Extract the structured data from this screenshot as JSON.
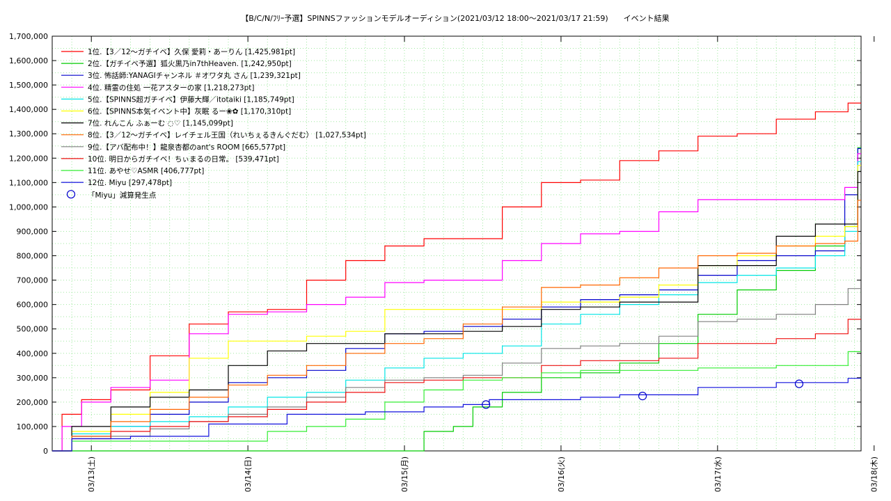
{
  "chart_data": {
    "type": "line",
    "title": "【B/C/N/ﾌﾘｰ予選】SPINNSファッションモデルオーディション(2021/03/12 18:00～2021/03/17 21:59)　　イベント結果",
    "xlabel": "",
    "ylabel": "",
    "x_range": [
      "2021/03/12 18:00",
      "2021/03/17 22:00"
    ],
    "ylim": [
      0,
      1700000
    ],
    "y_ticks": [
      0,
      100000,
      200000,
      300000,
      400000,
      500000,
      600000,
      700000,
      800000,
      900000,
      1000000,
      1100000,
      1200000,
      1300000,
      1400000,
      1500000,
      1600000,
      1700000
    ],
    "y_tick_labels": [
      "0",
      "100,000",
      "200,000",
      "300,000",
      "400,000",
      "500,000",
      "600,000",
      "700,000",
      "800,000",
      "900,000",
      "1,000,000",
      "1,100,000",
      "1,200,000",
      "1,300,000",
      "1,400,000",
      "1,500,000",
      "1,600,000",
      "1,700,000"
    ],
    "x_ticks": [
      {
        "t": "2021/03/13 00:00",
        "label": "03/13(土)"
      },
      {
        "t": "2021/03/14 00:00",
        "label": "03/14(日)"
      },
      {
        "t": "2021/03/15 00:00",
        "label": "03/15(月)"
      },
      {
        "t": "2021/03/16 00:00",
        "label": "03/16(火)"
      },
      {
        "t": "2021/03/17 00:00",
        "label": "03/17(水)"
      },
      {
        "t": "2021/03/18 00:00",
        "label": "03/18(木)"
      }
    ],
    "grid": true,
    "legend_position": "top-left",
    "series": [
      {
        "name": "1位.【3／12～ガチイベ】久保 愛莉・あーりん [1,425,981pt]",
        "color": "#ff0000",
        "x": [
          "2021/03/12 18:00",
          "2021/03/12 21:00",
          "2021/03/13 00:00",
          "2021/03/13 06:00",
          "2021/03/13 12:00",
          "2021/03/13 18:00",
          "2021/03/14 00:00",
          "2021/03/14 06:00",
          "2021/03/14 12:00",
          "2021/03/14 18:00",
          "2021/03/15 00:00",
          "2021/03/15 06:00",
          "2021/03/15 12:00",
          "2021/03/15 18:00",
          "2021/03/16 00:00",
          "2021/03/16 06:00",
          "2021/03/16 12:00",
          "2021/03/16 18:00",
          "2021/03/17 00:00",
          "2021/03/17 06:00",
          "2021/03/17 12:00",
          "2021/03/17 18:00",
          "2021/03/17 22:00"
        ],
        "y": [
          0,
          150000,
          210000,
          250000,
          390000,
          520000,
          570000,
          580000,
          700000,
          780000,
          840000,
          870000,
          870000,
          1000000,
          1100000,
          1110000,
          1190000,
          1230000,
          1290000,
          1300000,
          1360000,
          1390000,
          1425981
        ]
      },
      {
        "name": "2位.【ガチイベ予選】狐火黒乃in7thHeaven. [1,242,950pt]",
        "color": "#00cc00",
        "x": [
          "2021/03/12 18:00",
          "2021/03/15 00:00",
          "2021/03/15 06:00",
          "2021/03/15 09:00",
          "2021/03/15 12:00",
          "2021/03/15 18:00",
          "2021/03/16 00:00",
          "2021/03/16 06:00",
          "2021/03/16 12:00",
          "2021/03/16 18:00",
          "2021/03/17 00:00",
          "2021/03/17 06:00",
          "2021/03/17 12:00",
          "2021/03/17 18:00",
          "2021/03/17 21:00",
          "2021/03/17 22:00"
        ],
        "y": [
          0,
          0,
          80000,
          100000,
          180000,
          240000,
          300000,
          320000,
          360000,
          440000,
          560000,
          660000,
          740000,
          840000,
          920000,
          1242950
        ]
      },
      {
        "name": "3位. 怖話師:YANAGIチャンネル ＃オワタ丸 さん [1,239,321pt]",
        "color": "#0000cc",
        "x": [
          "2021/03/12 18:00",
          "2021/03/13 00:00",
          "2021/03/13 06:00",
          "2021/03/13 12:00",
          "2021/03/13 18:00",
          "2021/03/14 00:00",
          "2021/03/14 06:00",
          "2021/03/14 12:00",
          "2021/03/14 18:00",
          "2021/03/15 00:00",
          "2021/03/15 06:00",
          "2021/03/15 12:00",
          "2021/03/15 18:00",
          "2021/03/16 00:00",
          "2021/03/16 06:00",
          "2021/03/16 12:00",
          "2021/03/16 18:00",
          "2021/03/17 00:00",
          "2021/03/17 06:00",
          "2021/03/17 12:00",
          "2021/03/17 18:00",
          "2021/03/17 21:00",
          "2021/03/17 22:00"
        ],
        "y": [
          0,
          60000,
          100000,
          150000,
          200000,
          280000,
          300000,
          330000,
          420000,
          480000,
          490000,
          510000,
          540000,
          590000,
          620000,
          640000,
          660000,
          720000,
          780000,
          800000,
          820000,
          1050000,
          1239321
        ]
      },
      {
        "name": "4位. 精霊の住処 一花アスターの家 [1,218,273pt]",
        "color": "#ff00ff",
        "x": [
          "2021/03/12 18:00",
          "2021/03/12 21:00",
          "2021/03/13 00:00",
          "2021/03/13 06:00",
          "2021/03/13 12:00",
          "2021/03/13 18:00",
          "2021/03/14 00:00",
          "2021/03/14 06:00",
          "2021/03/14 12:00",
          "2021/03/14 18:00",
          "2021/03/15 00:00",
          "2021/03/15 06:00",
          "2021/03/15 12:00",
          "2021/03/15 18:00",
          "2021/03/16 00:00",
          "2021/03/16 06:00",
          "2021/03/16 12:00",
          "2021/03/16 18:00",
          "2021/03/17 00:00",
          "2021/03/17 06:00",
          "2021/03/17 12:00",
          "2021/03/17 18:00",
          "2021/03/17 21:00",
          "2021/03/17 22:00"
        ],
        "y": [
          0,
          100000,
          200000,
          260000,
          290000,
          480000,
          560000,
          570000,
          600000,
          630000,
          690000,
          700000,
          700000,
          780000,
          850000,
          890000,
          900000,
          980000,
          1030000,
          1030000,
          1030000,
          1030000,
          1080000,
          1218273
        ]
      },
      {
        "name": "5位.【SPINNS超ガチイベ】伊藤大輝／itotaiki [1,185,749pt]",
        "color": "#00e5e5",
        "x": [
          "2021/03/12 18:00",
          "2021/03/13 00:00",
          "2021/03/13 06:00",
          "2021/03/13 12:00",
          "2021/03/13 18:00",
          "2021/03/14 00:00",
          "2021/03/14 06:00",
          "2021/03/14 12:00",
          "2021/03/14 18:00",
          "2021/03/15 00:00",
          "2021/03/15 06:00",
          "2021/03/15 12:00",
          "2021/03/15 18:00",
          "2021/03/16 00:00",
          "2021/03/16 06:00",
          "2021/03/16 12:00",
          "2021/03/16 18:00",
          "2021/03/17 00:00",
          "2021/03/17 06:00",
          "2021/03/17 12:00",
          "2021/03/17 18:00",
          "2021/03/17 21:00",
          "2021/03/17 22:00"
        ],
        "y": [
          0,
          70000,
          100000,
          120000,
          140000,
          180000,
          220000,
          240000,
          290000,
          340000,
          380000,
          400000,
          430000,
          520000,
          560000,
          600000,
          640000,
          690000,
          720000,
          750000,
          800000,
          900000,
          1185749
        ]
      },
      {
        "name": "6位.【SPINNS本気イベント中】灰眠 るー❀✿ [1,170,310pt]",
        "color": "#ffff00",
        "x": [
          "2021/03/12 18:00",
          "2021/03/13 00:00",
          "2021/03/13 06:00",
          "2021/03/13 12:00",
          "2021/03/13 18:00",
          "2021/03/14 00:00",
          "2021/03/14 06:00",
          "2021/03/14 12:00",
          "2021/03/14 18:00",
          "2021/03/15 00:00",
          "2021/03/15 06:00",
          "2021/03/15 12:00",
          "2021/03/15 18:00",
          "2021/03/16 00:00",
          "2021/03/16 06:00",
          "2021/03/16 12:00",
          "2021/03/16 18:00",
          "2021/03/17 00:00",
          "2021/03/17 06:00",
          "2021/03/17 12:00",
          "2021/03/17 18:00",
          "2021/03/17 21:00",
          "2021/03/17 22:00"
        ],
        "y": [
          0,
          80000,
          150000,
          240000,
          380000,
          450000,
          450000,
          470000,
          490000,
          580000,
          580000,
          580000,
          580000,
          610000,
          610000,
          630000,
          680000,
          760000,
          800000,
          840000,
          880000,
          920000,
          1170310
        ]
      },
      {
        "name": "7位. れんこん ふぁーむ ◌♡ [1,145,099pt]",
        "color": "#000000",
        "x": [
          "2021/03/12 18:00",
          "2021/03/13 00:00",
          "2021/03/13 06:00",
          "2021/03/13 12:00",
          "2021/03/13 18:00",
          "2021/03/14 00:00",
          "2021/03/14 06:00",
          "2021/03/14 12:00",
          "2021/03/14 18:00",
          "2021/03/15 00:00",
          "2021/03/15 06:00",
          "2021/03/15 12:00",
          "2021/03/15 18:00",
          "2021/03/16 00:00",
          "2021/03/16 06:00",
          "2021/03/16 12:00",
          "2021/03/16 18:00",
          "2021/03/17 00:00",
          "2021/03/17 06:00",
          "2021/03/17 12:00",
          "2021/03/17 18:00",
          "2021/03/17 21:00",
          "2021/03/17 22:00"
        ],
        "y": [
          0,
          100000,
          180000,
          220000,
          250000,
          350000,
          410000,
          440000,
          440000,
          480000,
          480000,
          490000,
          510000,
          580000,
          590000,
          610000,
          610000,
          760000,
          760000,
          880000,
          930000,
          930000,
          1145099
        ]
      },
      {
        "name": "8位.【3／12～ガチイベ】レイチェル王国（れいちぇるきんぐだむ） [1,027,534pt]",
        "color": "#ff6600",
        "x": [
          "2021/03/12 18:00",
          "2021/03/13 00:00",
          "2021/03/13 06:00",
          "2021/03/13 12:00",
          "2021/03/13 18:00",
          "2021/03/14 00:00",
          "2021/03/14 06:00",
          "2021/03/14 12:00",
          "2021/03/14 18:00",
          "2021/03/15 00:00",
          "2021/03/15 06:00",
          "2021/03/15 12:00",
          "2021/03/15 18:00",
          "2021/03/16 00:00",
          "2021/03/16 06:00",
          "2021/03/16 12:00",
          "2021/03/16 18:00",
          "2021/03/17 00:00",
          "2021/03/17 06:00",
          "2021/03/17 12:00",
          "2021/03/17 18:00",
          "2021/03/17 21:00",
          "2021/03/17 22:00"
        ],
        "y": [
          0,
          60000,
          120000,
          170000,
          220000,
          270000,
          310000,
          350000,
          400000,
          440000,
          460000,
          520000,
          590000,
          670000,
          680000,
          710000,
          750000,
          800000,
          810000,
          840000,
          850000,
          860000,
          1027534
        ]
      },
      {
        "name": "9位.【アバ配布中！】龍泉杏都のant's ROOM [665,577pt]",
        "color": "#808080",
        "x": [
          "2021/03/12 18:00",
          "2021/03/13 00:00",
          "2021/03/13 06:00",
          "2021/03/13 12:00",
          "2021/03/13 18:00",
          "2021/03/14 00:00",
          "2021/03/14 06:00",
          "2021/03/14 12:00",
          "2021/03/14 18:00",
          "2021/03/15 00:00",
          "2021/03/15 06:00",
          "2021/03/15 12:00",
          "2021/03/15 18:00",
          "2021/03/16 00:00",
          "2021/03/16 06:00",
          "2021/03/16 12:00",
          "2021/03/16 18:00",
          "2021/03/17 00:00",
          "2021/03/17 06:00",
          "2021/03/17 12:00",
          "2021/03/17 18:00",
          "2021/03/17 22:00"
        ],
        "y": [
          0,
          50000,
          60000,
          90000,
          120000,
          150000,
          180000,
          220000,
          260000,
          290000,
          300000,
          310000,
          360000,
          420000,
          430000,
          440000,
          470000,
          530000,
          540000,
          560000,
          600000,
          665577
        ]
      },
      {
        "name": "10位. 明日からガチイベ！ちぃまるの日常。 [539,471pt]",
        "color": "#ee1111",
        "x": [
          "2021/03/12 18:00",
          "2021/03/13 00:00",
          "2021/03/13 06:00",
          "2021/03/13 12:00",
          "2021/03/13 18:00",
          "2021/03/14 00:00",
          "2021/03/14 06:00",
          "2021/03/14 12:00",
          "2021/03/14 18:00",
          "2021/03/15 00:00",
          "2021/03/15 06:00",
          "2021/03/15 12:00",
          "2021/03/15 18:00",
          "2021/03/16 00:00",
          "2021/03/16 06:00",
          "2021/03/16 12:00",
          "2021/03/16 18:00",
          "2021/03/17 00:00",
          "2021/03/17 06:00",
          "2021/03/17 12:00",
          "2021/03/17 18:00",
          "2021/03/17 22:00"
        ],
        "y": [
          0,
          50000,
          80000,
          100000,
          120000,
          140000,
          170000,
          200000,
          240000,
          280000,
          290000,
          300000,
          300000,
          350000,
          370000,
          370000,
          380000,
          440000,
          440000,
          460000,
          480000,
          539471
        ]
      },
      {
        "name": "11位. あやせ♡ASMR [406,777pt]",
        "color": "#33ee33",
        "x": [
          "2021/03/12 18:00",
          "2021/03/13 00:00",
          "2021/03/13 12:00",
          "2021/03/14 00:00",
          "2021/03/14 06:00",
          "2021/03/14 12:00",
          "2021/03/14 18:00",
          "2021/03/15 00:00",
          "2021/03/15 06:00",
          "2021/03/15 12:00",
          "2021/03/15 18:00",
          "2021/03/16 00:00",
          "2021/03/16 06:00",
          "2021/03/16 12:00",
          "2021/03/16 18:00",
          "2021/03/17 00:00",
          "2021/03/17 06:00",
          "2021/03/17 12:00",
          "2021/03/17 18:00",
          "2021/03/17 22:00"
        ],
        "y": [
          0,
          40000,
          40000,
          40000,
          80000,
          100000,
          130000,
          200000,
          250000,
          290000,
          300000,
          320000,
          330000,
          330000,
          330000,
          340000,
          340000,
          350000,
          350000,
          406777
        ]
      },
      {
        "name": "12位. Miyu [297,478pt]",
        "color": "#1111dd",
        "x": [
          "2021/03/12 18:00",
          "2021/03/13 00:00",
          "2021/03/13 12:00",
          "2021/03/14 00:00",
          "2021/03/14 12:00",
          "2021/03/15 00:00",
          "2021/03/15 06:00",
          "2021/03/15 12:00",
          "2021/03/15 14:00",
          "2021/03/15 18:00",
          "2021/03/16 00:00",
          "2021/03/16 06:00",
          "2021/03/16 12:00",
          "2021/03/16 18:00",
          "2021/03/17 00:00",
          "2021/03/17 06:00",
          "2021/03/17 12:00",
          "2021/03/17 18:00",
          "2021/03/17 22:00"
        ],
        "y": [
          0,
          50000,
          60000,
          110000,
          150000,
          160000,
          180000,
          190000,
          210000,
          210000,
          210000,
          220000,
          230000,
          230000,
          260000,
          260000,
          280000,
          280000,
          297478
        ]
      }
    ],
    "markers": {
      "name": "「Miyu」減算発生点",
      "color": "#0000cc",
      "points": [
        {
          "x": "2021/03/15 12:30",
          "y": 190000
        },
        {
          "x": "2021/03/16 12:30",
          "y": 225000
        },
        {
          "x": "2021/03/17 12:30",
          "y": 275000
        }
      ]
    }
  }
}
